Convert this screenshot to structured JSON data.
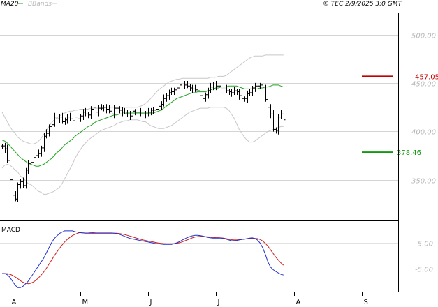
{
  "header": {
    "legend_ma": "MA20",
    "legend_bb": "BBands",
    "copyright": "© TEC 2/9/2025 3:0 GMT",
    "ma_color": "#1fa51f",
    "bb_color": "#c8c8c8"
  },
  "levels": {
    "resistance": {
      "label": "457.05",
      "value": 457.05,
      "color": "#c00000"
    },
    "support": {
      "label": "378.46",
      "value": 378.46,
      "color": "#119911"
    }
  },
  "macd_panel": {
    "title": "MACD",
    "macd_color": "#1f2fd0",
    "signal_color": "#d01f1f"
  },
  "chart_data": [
    {
      "type": "ohlc",
      "title": "",
      "yaxis_ticks": [
        {
          "value": 500,
          "label": "500.00"
        },
        {
          "value": 450,
          "label": "450.00"
        },
        {
          "value": 400,
          "label": "400.00"
        },
        {
          "value": 350,
          "label": "350.00"
        }
      ],
      "ylim": [
        310,
        523
      ],
      "x_labels": [
        {
          "i": 3,
          "label": "A"
        },
        {
          "i": 30,
          "label": "M"
        },
        {
          "i": 56,
          "label": "J"
        },
        {
          "i": 82,
          "label": "J"
        },
        {
          "i": 112,
          "label": "A"
        },
        {
          "i": 138,
          "label": "S"
        }
      ],
      "close": [
        385,
        382,
        370,
        350,
        334,
        330,
        345,
        348,
        344,
        360,
        367,
        368,
        373,
        375,
        377,
        383,
        395,
        398,
        405,
        407,
        415,
        413,
        415,
        410,
        412,
        415,
        413,
        411,
        415,
        413,
        416,
        420,
        418,
        417,
        423,
        425,
        420,
        424,
        424,
        425,
        423,
        421,
        418,
        424,
        424,
        422,
        420,
        420,
        418,
        416,
        421,
        420,
        420,
        418,
        418,
        418,
        420,
        422,
        422,
        423,
        426,
        428,
        434,
        437,
        440,
        441,
        443,
        445,
        448,
        449,
        448,
        447,
        445,
        444,
        443,
        442,
        437,
        434,
        438,
        442,
        446,
        449,
        447,
        447,
        444,
        444,
        442,
        441,
        440,
        442,
        441,
        437,
        434,
        434,
        439,
        440,
        445,
        447,
        447,
        448,
        444,
        433,
        425,
        418,
        402,
        401,
        415,
        418,
        412
      ],
      "ma20": [
        391,
        390,
        388,
        385,
        382,
        379,
        376,
        373,
        371,
        369,
        367,
        366,
        365,
        364,
        364,
        365,
        366,
        368,
        370,
        372,
        375,
        378,
        380,
        383,
        386,
        388,
        390,
        392,
        395,
        397,
        399,
        401,
        403,
        405,
        406,
        408,
        410,
        411,
        412,
        413,
        414,
        415,
        416,
        417,
        417,
        418,
        418,
        418,
        419,
        419,
        419,
        419,
        419,
        419,
        419,
        419,
        419,
        419,
        419,
        420,
        421,
        422,
        424,
        426,
        428,
        430,
        432,
        434,
        435,
        436,
        437,
        438,
        439,
        440,
        440,
        441,
        441,
        441,
        441,
        442,
        443,
        444,
        445,
        445,
        446,
        446,
        446,
        447,
        447,
        447,
        447,
        446,
        445,
        444,
        444,
        444,
        444,
        444,
        444,
        445,
        445,
        446,
        446,
        447,
        448,
        448,
        448,
        447,
        446
      ],
      "bb_upper": [
        420,
        415,
        410,
        405,
        401,
        398,
        394,
        392,
        390,
        389,
        388,
        387,
        387,
        388,
        390,
        393,
        397,
        401,
        405,
        409,
        412,
        414,
        416,
        418,
        419,
        420,
        421,
        421,
        422,
        422,
        423,
        423,
        423,
        423,
        424,
        424,
        424,
        424,
        424,
        424,
        425,
        425,
        425,
        425,
        425,
        425,
        425,
        425,
        425,
        425,
        425,
        425,
        425,
        426,
        427,
        429,
        431,
        434,
        437,
        440,
        443,
        445,
        447,
        449,
        451,
        452,
        453,
        454,
        454,
        455,
        455,
        455,
        455,
        455,
        455,
        455,
        455,
        455,
        455,
        455,
        456,
        456,
        456,
        457,
        457,
        457,
        458,
        460,
        462,
        464,
        466,
        468,
        470,
        472,
        474,
        476,
        477,
        478,
        478,
        478,
        478,
        479,
        479,
        479,
        479,
        479,
        479,
        479,
        479
      ],
      "bb_lower": [
        362,
        365,
        366,
        365,
        363,
        360,
        358,
        354,
        352,
        349,
        346,
        345,
        343,
        340,
        338,
        337,
        335,
        335,
        336,
        337,
        338,
        340,
        342,
        346,
        351,
        356,
        361,
        366,
        372,
        377,
        381,
        385,
        388,
        391,
        393,
        395,
        397,
        399,
        401,
        402,
        403,
        404,
        405,
        406,
        408,
        409,
        410,
        411,
        411,
        412,
        412,
        412,
        412,
        411,
        410,
        410,
        408,
        406,
        405,
        404,
        403,
        403,
        403,
        404,
        405,
        406,
        408,
        410,
        412,
        414,
        416,
        418,
        420,
        421,
        422,
        423,
        424,
        424,
        424,
        424,
        425,
        425,
        425,
        425,
        425,
        425,
        424,
        422,
        418,
        414,
        408,
        402,
        398,
        394,
        391,
        389,
        389,
        390,
        392,
        394,
        396,
        398,
        400,
        401,
        402,
        403,
        404,
        405,
        405
      ]
    },
    {
      "type": "line",
      "title": "MACD",
      "yaxis_ticks": [
        {
          "value": 5,
          "label": "5.00"
        },
        {
          "value": -5,
          "label": "-5.00"
        }
      ],
      "ylim": [
        -13.5,
        13
      ],
      "series": [
        {
          "name": "MACD",
          "values": [
            -7,
            -7,
            -7.5,
            -8.5,
            -10,
            -11.5,
            -12.5,
            -12.5,
            -12,
            -11,
            -10,
            -8.5,
            -7,
            -5.5,
            -4,
            -2.5,
            -1,
            1,
            3,
            5,
            6.5,
            7.5,
            8.5,
            9,
            9.5,
            9.5,
            9.5,
            9.5,
            9.2,
            9,
            8.8,
            8.7,
            8.6,
            8.6,
            8.6,
            8.6,
            8.6,
            8.6,
            8.6,
            8.6,
            8.6,
            8.6,
            8.6,
            8.6,
            8.5,
            8.2,
            7.8,
            7.4,
            7,
            6.6,
            6.4,
            6.2,
            6,
            5.8,
            5.6,
            5.4,
            5.2,
            5,
            4.8,
            4.6,
            4.5,
            4.4,
            4.3,
            4.3,
            4.3,
            4.3,
            4.5,
            4.9,
            5.3,
            5.9,
            6.4,
            6.9,
            7.3,
            7.6,
            7.8,
            7.8,
            7.7,
            7.5,
            7.2,
            7,
            6.8,
            6.7,
            6.7,
            6.7,
            6.7,
            6.6,
            6.3,
            6,
            5.7,
            5.7,
            5.8,
            6,
            6.2,
            6.3,
            6.5,
            6.7,
            6.8,
            6.6,
            6,
            4.8,
            3,
            0.5,
            -2.5,
            -4.5,
            -5.5,
            -6.2,
            -6.8,
            -7.3,
            -7.6
          ]
        },
        {
          "name": "Signal",
          "values": [
            -7,
            -7,
            -7.1,
            -7.3,
            -7.7,
            -8.3,
            -9,
            -9.8,
            -10.4,
            -10.8,
            -11,
            -10.8,
            -10.3,
            -9.6,
            -8.7,
            -7.6,
            -6.4,
            -5,
            -3.4,
            -1.8,
            -0.2,
            1.3,
            2.7,
            4,
            5.2,
            6.2,
            7,
            7.7,
            8.2,
            8.6,
            8.9,
            9,
            9,
            9,
            8.9,
            8.8,
            8.7,
            8.7,
            8.7,
            8.7,
            8.7,
            8.7,
            8.7,
            8.6,
            8.6,
            8.5,
            8.3,
            8.1,
            7.8,
            7.5,
            7.2,
            6.9,
            6.6,
            6.3,
            6,
            5.8,
            5.6,
            5.4,
            5.2,
            5,
            4.8,
            4.7,
            4.6,
            4.5,
            4.5,
            4.5,
            4.6,
            4.7,
            4.9,
            5.2,
            5.6,
            6,
            6.4,
            6.8,
            7.1,
            7.3,
            7.4,
            7.4,
            7.3,
            7.2,
            7.1,
            7,
            6.9,
            6.9,
            6.8,
            6.7,
            6.5,
            6.3,
            6.1,
            6,
            6,
            6.1,
            6.2,
            6.3,
            6.4,
            6.5,
            6.6,
            6.6,
            6.5,
            6.2,
            5.6,
            4.7,
            3.6,
            2.2,
            0.8,
            -0.6,
            -1.8,
            -2.9,
            -3.8
          ]
        }
      ]
    }
  ]
}
